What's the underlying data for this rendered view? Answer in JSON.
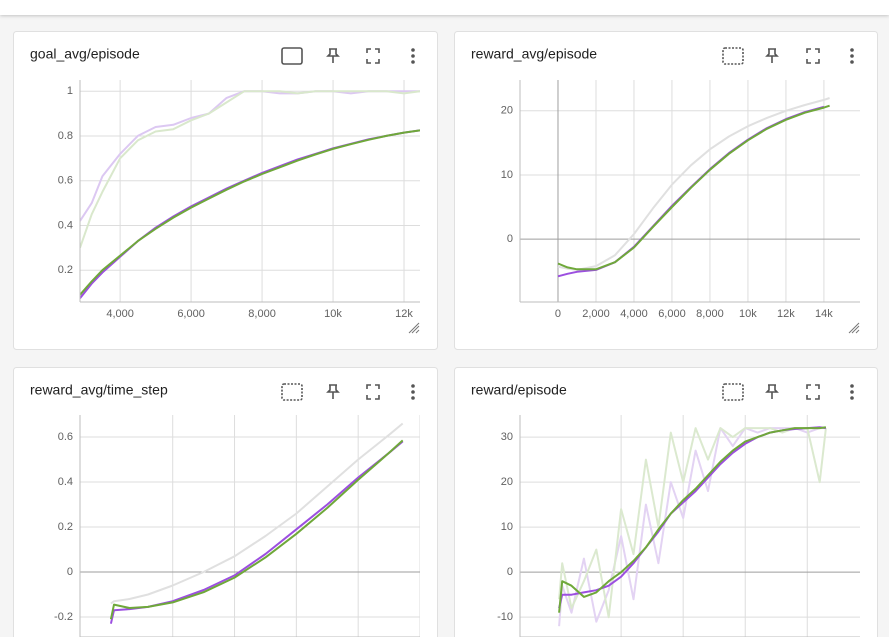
{
  "chart_data": [
    {
      "type": "line",
      "title": "goal_avg/episode",
      "x": [
        2870,
        3200,
        3500,
        4000,
        4500,
        5000,
        5500,
        6000,
        6500,
        7000,
        7500,
        8000,
        8500,
        9000,
        9500,
        10000,
        10500,
        11000,
        11500,
        12000,
        12450
      ],
      "xlim": [
        2870,
        12450
      ],
      "ylim": [
        0.058,
        1.05
      ],
      "xticks": [
        {
          "value": 4000,
          "label": "4,000"
        },
        {
          "value": 6000,
          "label": "6,000"
        },
        {
          "value": 8000,
          "label": "8,000"
        },
        {
          "value": 10000,
          "label": "10k"
        },
        {
          "value": 12000,
          "label": "12k"
        }
      ],
      "yticks": [
        0.2,
        0.4,
        0.6,
        0.8,
        1
      ],
      "grid": true,
      "series": [
        {
          "color": "#dcc8f2",
          "values": [
            0.42,
            0.5,
            0.62,
            0.72,
            0.8,
            0.84,
            0.85,
            0.88,
            0.9,
            0.97,
            1.0,
            1.0,
            0.99,
            0.99,
            1.0,
            1.0,
            0.99,
            1.0,
            1.0,
            1.0,
            1.0
          ]
        },
        {
          "color": "#d9e8cc",
          "values": [
            0.3,
            0.45,
            0.55,
            0.7,
            0.78,
            0.82,
            0.83,
            0.87,
            0.9,
            0.95,
            1.0,
            1.0,
            1.0,
            0.99,
            1.0,
            1.0,
            1.0,
            1.0,
            1.0,
            0.99,
            1.0
          ]
        },
        {
          "color": "#9c4fe0",
          "values": [
            0.075,
            0.14,
            0.19,
            0.26,
            0.33,
            0.39,
            0.44,
            0.485,
            0.525,
            0.565,
            0.6,
            0.635,
            0.665,
            0.695,
            0.72,
            0.745,
            0.765,
            0.785,
            0.8,
            0.815,
            0.825
          ]
        },
        {
          "color": "#6fa83a",
          "values": [
            0.09,
            0.15,
            0.2,
            0.265,
            0.33,
            0.385,
            0.435,
            0.48,
            0.52,
            0.56,
            0.597,
            0.63,
            0.66,
            0.69,
            0.717,
            0.742,
            0.763,
            0.783,
            0.8,
            0.815,
            0.825
          ]
        }
      ]
    },
    {
      "type": "line",
      "title": "reward_avg/episode",
      "x": [
        0,
        500,
        1000,
        2000,
        3000,
        4000,
        5000,
        6000,
        7000,
        8000,
        9000,
        10000,
        11000,
        12000,
        13000,
        14000,
        14300
      ],
      "xlim": [
        -2000,
        15900
      ],
      "ylim": [
        -9.8,
        24.8
      ],
      "xticks": [
        0,
        {
          "value": 2000,
          "label": "2,000"
        },
        {
          "value": 4000,
          "label": "4,000"
        },
        {
          "value": 6000,
          "label": "6,000"
        },
        {
          "value": 8000,
          "label": "8,000"
        },
        {
          "value": 10000,
          "label": "10k"
        },
        {
          "value": 12000,
          "label": "12k"
        },
        {
          "value": 14000,
          "label": "14k"
        }
      ],
      "yticks": [
        0,
        10,
        20
      ],
      "grid": true,
      "series": [
        {
          "color": "#e0e0e0",
          "values": [
            -4.3,
            -4.6,
            -4.8,
            -4.2,
            -2.5,
            0.8,
            4.8,
            8.5,
            11.5,
            14,
            16,
            17.6,
            18.9,
            20,
            20.9,
            21.7,
            22
          ]
        },
        {
          "color": "#9c4fe0",
          "values": [
            -5.8,
            -5.4,
            -5.1,
            -4.8,
            -3.6,
            -1.2,
            2,
            5.2,
            8.1,
            10.9,
            13.4,
            15.5,
            17.3,
            18.7,
            19.8,
            20.6,
            null
          ]
        },
        {
          "color": "#6fa83a",
          "values": [
            -3.8,
            -4.4,
            -4.7,
            -4.7,
            -3.6,
            -1.3,
            1.9,
            5,
            8,
            10.8,
            13.3,
            15.4,
            17.2,
            18.6,
            19.7,
            20.5,
            20.8
          ]
        }
      ]
    },
    {
      "type": "line",
      "title": "reward_avg/time_step",
      "x": [
        0,
        0.05,
        0.3,
        0.6,
        1,
        1.5,
        2,
        2.5,
        3,
        3.5,
        4,
        4.5,
        4.72
      ],
      "xlim": [
        -0.5,
        5.0
      ],
      "ylim": [
        -0.289,
        0.698
      ],
      "xticks": [
        {
          "value": 1,
          "label": null
        },
        {
          "value": 2,
          "label": null
        },
        {
          "value": 3,
          "label": null
        },
        {
          "value": 4,
          "label": null
        },
        {
          "value": 5,
          "label": null
        }
      ],
      "yticks": [
        -0.2,
        0,
        0.2,
        0.4,
        0.6
      ],
      "grid": true,
      "series": [
        {
          "color": "#e0e0e0",
          "values": [
            -0.14,
            -0.13,
            -0.12,
            -0.1,
            -0.06,
            0,
            0.07,
            0.16,
            0.26,
            0.38,
            0.5,
            0.61,
            0.66
          ]
        },
        {
          "color": "#9c4fe0",
          "values": [
            -0.23,
            -0.17,
            -0.165,
            -0.155,
            -0.13,
            -0.08,
            -0.015,
            0.08,
            0.19,
            0.3,
            0.42,
            0.53,
            0.58
          ]
        },
        {
          "color": "#6fa83a",
          "values": [
            -0.21,
            -0.145,
            -0.16,
            -0.155,
            -0.135,
            -0.09,
            -0.025,
            0.065,
            0.17,
            0.285,
            0.41,
            0.53,
            0.585
          ]
        }
      ]
    },
    {
      "type": "line",
      "title": "reward/episode",
      "x": [
        0,
        0.05,
        0.2,
        0.4,
        0.6,
        0.8,
        1,
        1.2,
        1.4,
        1.6,
        1.8,
        2,
        2.2,
        2.4,
        2.6,
        2.8,
        3,
        3.2,
        3.4,
        3.6,
        3.8,
        4,
        4.2,
        4.3
      ],
      "xlim": [
        -0.63,
        4.85
      ],
      "ylim": [
        -14.4,
        34.9
      ],
      "xticks": [
        {
          "value": 1,
          "label": null
        },
        {
          "value": 2,
          "label": null
        },
        {
          "value": 3,
          "label": null
        },
        {
          "value": 4,
          "label": null
        }
      ],
      "yticks": [
        -10,
        0,
        10,
        20,
        30
      ],
      "grid": true,
      "series": [
        {
          "color": "#e3d3f3",
          "values": [
            -12,
            -3,
            -9,
            3,
            -11,
            -4,
            8,
            -6,
            15,
            2,
            20,
            12,
            27,
            18,
            32,
            28,
            32,
            31,
            32,
            32,
            32,
            31,
            32,
            32
          ]
        },
        {
          "color": "#dbe9cf",
          "values": [
            -6,
            2,
            -8,
            -2,
            5,
            -10,
            14,
            4,
            25,
            10,
            31,
            20,
            32,
            25,
            32,
            30,
            32,
            32,
            32,
            31,
            32,
            32,
            20,
            32
          ]
        },
        {
          "color": "#9c4fe0",
          "values": [
            -8,
            -5,
            -5,
            -4.5,
            -4,
            -3,
            -1,
            2,
            5.5,
            9,
            13,
            15.5,
            18,
            21,
            24,
            26.5,
            28.5,
            30,
            31,
            31.5,
            31.8,
            32,
            32.2,
            32
          ]
        },
        {
          "color": "#6fa83a",
          "values": [
            -9,
            -2,
            -3,
            -5.5,
            -4.5,
            -2,
            0,
            2.5,
            5.5,
            9.5,
            13,
            16,
            18.5,
            21.5,
            24.5,
            27,
            29,
            30,
            31,
            31.5,
            32,
            32,
            32,
            32.2
          ]
        }
      ]
    }
  ]
}
